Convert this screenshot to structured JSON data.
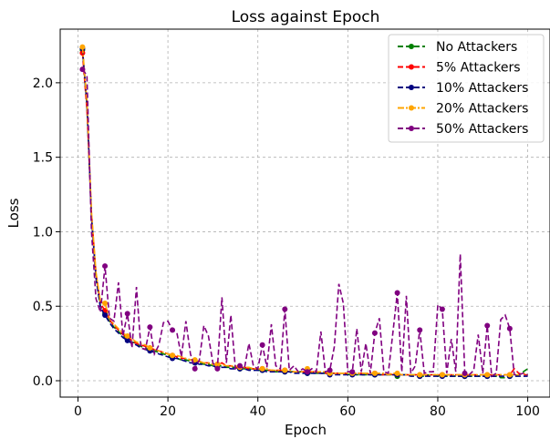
{
  "chart_data": {
    "type": "line",
    "title": "Loss against Epoch",
    "xlabel": "Epoch",
    "ylabel": "Loss",
    "xlim": [
      -3.95,
      104.95
    ],
    "ylim": [
      -0.11,
      2.36
    ],
    "xticks": [
      0,
      20,
      40,
      60,
      80,
      100
    ],
    "yticks": [
      0.0,
      0.5,
      1.0,
      1.5,
      2.0
    ],
    "xtick_labels": [
      "0",
      "20",
      "40",
      "60",
      "80",
      "100"
    ],
    "ytick_labels": [
      "0.0",
      "0.5",
      "1.0",
      "1.5",
      "2.0"
    ],
    "grid": true,
    "legend_position": "top-right",
    "series": [
      {
        "name": "No Attackers",
        "color": "#008000",
        "x": [
          1,
          2,
          3,
          4,
          5,
          6,
          7,
          8,
          9,
          10,
          11,
          12,
          13,
          14,
          15,
          16,
          17,
          18,
          19,
          20,
          21,
          22,
          23,
          24,
          25,
          26,
          27,
          28,
          29,
          30,
          31,
          32,
          33,
          34,
          35,
          36,
          37,
          38,
          39,
          40,
          41,
          42,
          43,
          44,
          45,
          46,
          47,
          48,
          49,
          50,
          51,
          52,
          53,
          54,
          55,
          56,
          57,
          58,
          59,
          60,
          61,
          62,
          63,
          64,
          65,
          66,
          67,
          68,
          69,
          70,
          71,
          72,
          73,
          74,
          75,
          76,
          77,
          78,
          79,
          80,
          81,
          82,
          83,
          84,
          85,
          86,
          87,
          88,
          89,
          90,
          91,
          92,
          93,
          94,
          95,
          96,
          97,
          98,
          99,
          100
        ],
        "y": [
          2.22,
          1.85,
          1.1,
          0.7,
          0.5,
          0.45,
          0.4,
          0.36,
          0.33,
          0.3,
          0.28,
          0.26,
          0.25,
          0.23,
          0.22,
          0.21,
          0.2,
          0.19,
          0.18,
          0.17,
          0.16,
          0.15,
          0.14,
          0.14,
          0.13,
          0.12,
          0.12,
          0.11,
          0.11,
          0.1,
          0.1,
          0.1,
          0.09,
          0.09,
          0.09,
          0.08,
          0.08,
          0.08,
          0.08,
          0.07,
          0.07,
          0.07,
          0.07,
          0.06,
          0.06,
          0.06,
          0.06,
          0.06,
          0.06,
          0.06,
          0.05,
          0.05,
          0.05,
          0.05,
          0.05,
          0.05,
          0.05,
          0.05,
          0.05,
          0.04,
          0.05,
          0.04,
          0.04,
          0.04,
          0.04,
          0.04,
          0.04,
          0.04,
          0.04,
          0.04,
          0.03,
          0.04,
          0.04,
          0.04,
          0.04,
          0.03,
          0.03,
          0.04,
          0.04,
          0.03,
          0.04,
          0.03,
          0.03,
          0.03,
          0.03,
          0.03,
          0.03,
          0.03,
          0.03,
          0.03,
          0.03,
          0.03,
          0.03,
          0.02,
          0.02,
          0.03,
          0.03,
          0.04,
          0.06,
          0.08
        ]
      },
      {
        "name": "5% Attackers",
        "color": "#ff0000",
        "x": [
          1,
          2,
          3,
          4,
          5,
          6,
          7,
          8,
          9,
          10,
          11,
          12,
          13,
          14,
          15,
          16,
          17,
          18,
          19,
          20,
          21,
          22,
          23,
          24,
          25,
          26,
          27,
          28,
          29,
          30,
          31,
          32,
          33,
          34,
          35,
          36,
          37,
          38,
          39,
          40,
          41,
          42,
          43,
          44,
          45,
          46,
          47,
          48,
          49,
          50,
          51,
          52,
          53,
          54,
          55,
          56,
          57,
          58,
          59,
          60,
          61,
          62,
          63,
          64,
          65,
          66,
          67,
          68,
          69,
          70,
          71,
          72,
          73,
          74,
          75,
          76,
          77,
          78,
          79,
          80,
          81,
          82,
          83,
          84,
          85,
          86,
          87,
          88,
          89,
          90,
          91,
          92,
          93,
          94,
          95,
          96,
          97,
          98,
          99,
          100
        ],
        "y": [
          2.2,
          1.82,
          1.12,
          0.72,
          0.52,
          0.47,
          0.41,
          0.37,
          0.34,
          0.31,
          0.29,
          0.27,
          0.25,
          0.24,
          0.23,
          0.22,
          0.21,
          0.2,
          0.19,
          0.18,
          0.17,
          0.16,
          0.15,
          0.15,
          0.14,
          0.13,
          0.13,
          0.12,
          0.12,
          0.11,
          0.11,
          0.12,
          0.1,
          0.1,
          0.09,
          0.09,
          0.09,
          0.08,
          0.08,
          0.08,
          0.08,
          0.07,
          0.07,
          0.07,
          0.07,
          0.07,
          0.06,
          0.06,
          0.06,
          0.06,
          0.06,
          0.06,
          0.06,
          0.05,
          0.05,
          0.05,
          0.05,
          0.05,
          0.05,
          0.05,
          0.05,
          0.05,
          0.05,
          0.05,
          0.04,
          0.05,
          0.04,
          0.04,
          0.05,
          0.04,
          0.04,
          0.04,
          0.04,
          0.04,
          0.04,
          0.04,
          0.04,
          0.04,
          0.04,
          0.04,
          0.04,
          0.04,
          0.04,
          0.04,
          0.04,
          0.04,
          0.04,
          0.04,
          0.04,
          0.04,
          0.04,
          0.04,
          0.04,
          0.04,
          0.04,
          0.04,
          0.08,
          0.05,
          0.04,
          0.04
        ]
      },
      {
        "name": "10% Attackers",
        "color": "#000080",
        "x": [
          1,
          2,
          3,
          4,
          5,
          6,
          7,
          8,
          9,
          10,
          11,
          12,
          13,
          14,
          15,
          16,
          17,
          18,
          19,
          20,
          21,
          22,
          23,
          24,
          25,
          26,
          27,
          28,
          29,
          30,
          31,
          32,
          33,
          34,
          35,
          36,
          37,
          38,
          39,
          40,
          41,
          42,
          43,
          44,
          45,
          46,
          47,
          48,
          49,
          50,
          51,
          52,
          53,
          54,
          55,
          56,
          57,
          58,
          59,
          60,
          61,
          62,
          63,
          64,
          65,
          66,
          67,
          68,
          69,
          70,
          71,
          72,
          73,
          74,
          75,
          76,
          77,
          78,
          79,
          80,
          81,
          82,
          83,
          84,
          85,
          86,
          87,
          88,
          89,
          90,
          91,
          92,
          93,
          94,
          95,
          96,
          97,
          98,
          99,
          100
        ],
        "y": [
          2.23,
          1.86,
          1.1,
          0.69,
          0.49,
          0.44,
          0.39,
          0.35,
          0.32,
          0.29,
          0.27,
          0.25,
          0.24,
          0.22,
          0.21,
          0.2,
          0.19,
          0.18,
          0.17,
          0.16,
          0.15,
          0.15,
          0.14,
          0.13,
          0.12,
          0.12,
          0.11,
          0.11,
          0.1,
          0.1,
          0.09,
          0.09,
          0.09,
          0.08,
          0.08,
          0.08,
          0.08,
          0.07,
          0.07,
          0.07,
          0.07,
          0.06,
          0.06,
          0.06,
          0.06,
          0.06,
          0.06,
          0.05,
          0.05,
          0.05,
          0.05,
          0.05,
          0.05,
          0.05,
          0.05,
          0.04,
          0.04,
          0.04,
          0.04,
          0.04,
          0.04,
          0.04,
          0.04,
          0.04,
          0.04,
          0.04,
          0.04,
          0.04,
          0.04,
          0.04,
          0.04,
          0.04,
          0.04,
          0.03,
          0.03,
          0.03,
          0.03,
          0.03,
          0.03,
          0.03,
          0.03,
          0.03,
          0.03,
          0.03,
          0.03,
          0.03,
          0.03,
          0.03,
          0.03,
          0.03,
          0.03,
          0.03,
          0.03,
          0.03,
          0.03,
          0.03,
          0.03,
          0.03,
          0.03,
          0.03
        ]
      },
      {
        "name": "20% Attackers",
        "color": "#ffa500",
        "x": [
          1,
          2,
          3,
          4,
          5,
          6,
          7,
          8,
          9,
          10,
          11,
          12,
          13,
          14,
          15,
          16,
          17,
          18,
          19,
          20,
          21,
          22,
          23,
          24,
          25,
          26,
          27,
          28,
          29,
          30,
          31,
          32,
          33,
          34,
          35,
          36,
          37,
          38,
          39,
          40,
          41,
          42,
          43,
          44,
          45,
          46,
          47,
          48,
          49,
          50,
          51,
          52,
          53,
          54,
          55,
          56,
          57,
          58,
          59,
          60,
          61,
          62,
          63,
          64,
          65,
          66,
          67,
          68,
          69,
          70,
          71,
          72,
          73,
          74,
          75,
          76,
          77,
          78,
          79,
          80,
          81,
          82,
          83,
          84,
          85,
          86,
          87,
          88,
          89,
          90,
          91,
          92,
          93,
          94,
          95,
          96,
          97,
          98,
          99,
          100
        ],
        "y": [
          2.24,
          1.88,
          1.13,
          0.73,
          0.53,
          0.52,
          0.42,
          0.38,
          0.35,
          0.32,
          0.3,
          0.28,
          0.26,
          0.25,
          0.24,
          0.22,
          0.21,
          0.2,
          0.19,
          0.18,
          0.17,
          0.17,
          0.16,
          0.15,
          0.14,
          0.14,
          0.13,
          0.12,
          0.12,
          0.11,
          0.11,
          0.11,
          0.1,
          0.1,
          0.1,
          0.09,
          0.09,
          0.09,
          0.08,
          0.08,
          0.08,
          0.08,
          0.07,
          0.07,
          0.07,
          0.07,
          0.07,
          0.06,
          0.06,
          0.06,
          0.08,
          0.06,
          0.06,
          0.06,
          0.06,
          0.05,
          0.05,
          0.05,
          0.05,
          0.05,
          0.05,
          0.05,
          0.05,
          0.05,
          0.05,
          0.05,
          0.05,
          0.05,
          0.04,
          0.05,
          0.05,
          0.04,
          0.04,
          0.04,
          0.04,
          0.04,
          0.04,
          0.04,
          0.04,
          0.04,
          0.04,
          0.04,
          0.04,
          0.04,
          0.04,
          0.04,
          0.04,
          0.04,
          0.04,
          0.04,
          0.04,
          0.04,
          0.04,
          0.04,
          0.04,
          0.04,
          0.04,
          0.04,
          0.05,
          0.04
        ]
      },
      {
        "name": "50% Attackers",
        "color": "#800080",
        "x": [
          1,
          2,
          3,
          4,
          5,
          6,
          7,
          8,
          9,
          10,
          11,
          12,
          13,
          14,
          15,
          16,
          17,
          18,
          19,
          20,
          21,
          22,
          23,
          24,
          25,
          26,
          27,
          28,
          29,
          30,
          31,
          32,
          33,
          34,
          35,
          36,
          37,
          38,
          39,
          40,
          41,
          42,
          43,
          44,
          45,
          46,
          47,
          48,
          49,
          50,
          51,
          52,
          53,
          54,
          55,
          56,
          57,
          58,
          59,
          60,
          61,
          62,
          63,
          64,
          65,
          66,
          67,
          68,
          69,
          70,
          71,
          72,
          73,
          74,
          75,
          76,
          77,
          78,
          79,
          80,
          81,
          82,
          83,
          84,
          85,
          86,
          87,
          88,
          89,
          90,
          91,
          92,
          93,
          94,
          95,
          96,
          97,
          98,
          99,
          100
        ],
        "y": [
          2.09,
          2.05,
          1.0,
          0.55,
          0.46,
          0.77,
          0.42,
          0.4,
          0.66,
          0.3,
          0.45,
          0.22,
          0.63,
          0.22,
          0.21,
          0.36,
          0.18,
          0.24,
          0.39,
          0.4,
          0.34,
          0.32,
          0.16,
          0.4,
          0.18,
          0.08,
          0.14,
          0.37,
          0.3,
          0.12,
          0.08,
          0.56,
          0.12,
          0.44,
          0.08,
          0.1,
          0.08,
          0.25,
          0.1,
          0.08,
          0.24,
          0.09,
          0.38,
          0.1,
          0.08,
          0.48,
          0.07,
          0.1,
          0.06,
          0.08,
          0.06,
          0.08,
          0.06,
          0.33,
          0.06,
          0.07,
          0.23,
          0.65,
          0.52,
          0.06,
          0.06,
          0.35,
          0.06,
          0.25,
          0.05,
          0.32,
          0.42,
          0.06,
          0.05,
          0.32,
          0.59,
          0.06,
          0.57,
          0.05,
          0.1,
          0.34,
          0.05,
          0.06,
          0.06,
          0.51,
          0.48,
          0.05,
          0.28,
          0.06,
          0.85,
          0.05,
          0.04,
          0.07,
          0.31,
          0.05,
          0.37,
          0.03,
          0.05,
          0.41,
          0.44,
          0.35,
          0.04,
          0.04,
          0.05,
          0.04
        ]
      }
    ]
  }
}
